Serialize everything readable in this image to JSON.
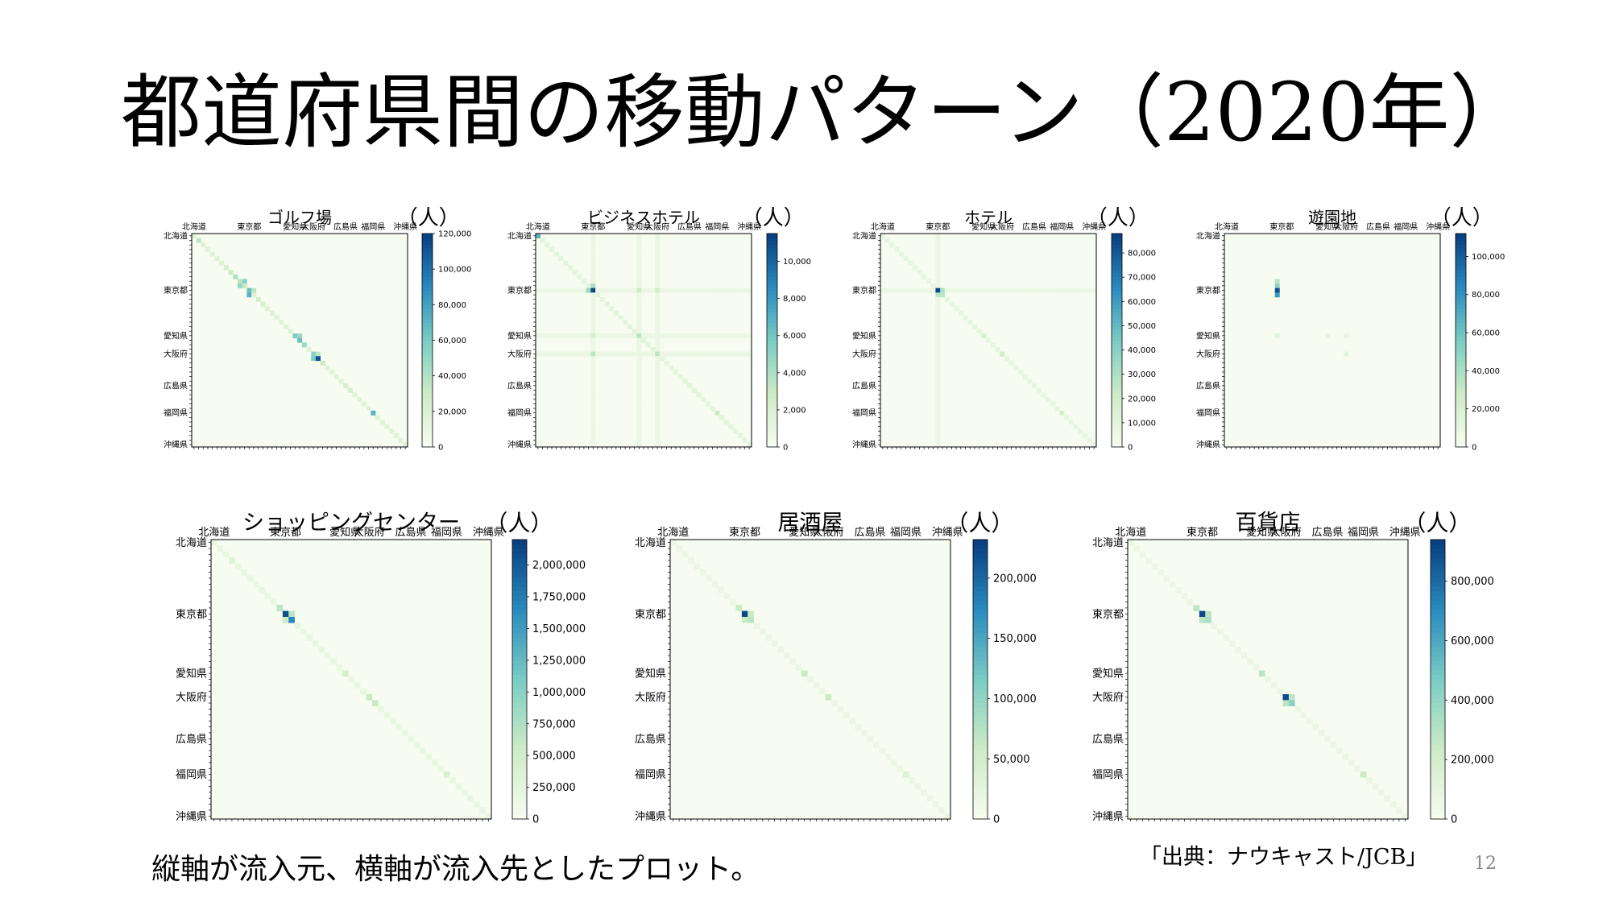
{
  "slide": {
    "title": "都道府県間の移動パターン（2020年）",
    "footer_note": "縦軸が流入元、横軸が流入先としたプロット。",
    "source": "「出典：ナウキャスト/JCB」",
    "page_number": "12"
  },
  "unit_label": "（人）",
  "prefecture_labels": [
    "北海道",
    "東京都",
    "愛知県",
    "大阪府",
    "広島県",
    "福岡県",
    "沖縄県"
  ],
  "colormap": [
    "#f7fcf0",
    "#ccebc5",
    "#7bccc4",
    "#2b8cbe",
    "#084081"
  ],
  "chart_data": [
    {
      "type": "heatmap",
      "title": "ゴルフ場",
      "colorbar_ticks": [
        "0",
        "20,000",
        "40,000",
        "60,000",
        "80,000",
        "100,000",
        "120,000"
      ],
      "colorbar_max": 120000,
      "hotspots": [
        [
          1,
          1,
          0.3
        ],
        [
          7,
          7,
          0.2
        ],
        [
          8,
          8,
          0.25
        ],
        [
          9,
          9,
          0.35
        ],
        [
          10,
          10,
          0.3
        ],
        [
          10,
          11,
          0.45
        ],
        [
          11,
          10,
          0.4
        ],
        [
          12,
          12,
          0.55
        ],
        [
          13,
          12,
          0.6
        ],
        [
          11,
          11,
          0.25
        ],
        [
          12,
          13,
          0.3
        ],
        [
          22,
          22,
          0.5
        ],
        [
          22,
          23,
          0.4
        ],
        [
          23,
          23,
          0.55
        ],
        [
          24,
          24,
          0.4
        ],
        [
          26,
          26,
          0.45
        ],
        [
          27,
          27,
          0.95
        ],
        [
          27,
          26,
          0.5
        ],
        [
          26,
          27,
          0.3
        ],
        [
          39,
          39,
          0.6
        ],
        [
          14,
          14,
          0.2
        ],
        [
          15,
          15,
          0.2
        ],
        [
          28,
          28,
          0.25
        ],
        [
          33,
          33,
          0.2
        ],
        [
          34,
          34,
          0.2
        ]
      ],
      "diagonal_level": 0.14
    },
    {
      "type": "heatmap",
      "title": "ビジネスホテル",
      "colorbar_ticks": [
        "0",
        "2,000",
        "4,000",
        "6,000",
        "8,000",
        "10,000"
      ],
      "colorbar_max": 11500,
      "hotspots": [
        [
          0,
          0,
          0.6
        ],
        [
          12,
          12,
          0.98
        ],
        [
          12,
          11,
          0.4
        ],
        [
          11,
          12,
          0.35
        ],
        [
          22,
          22,
          0.3
        ],
        [
          26,
          26,
          0.3
        ],
        [
          26,
          12,
          0.3
        ],
        [
          12,
          26,
          0.22
        ],
        [
          12,
          22,
          0.25
        ],
        [
          39,
          39,
          0.25
        ],
        [
          22,
          12,
          0.2
        ]
      ],
      "diagonal_level": 0.12,
      "row_streaks": [
        12,
        26,
        22
      ],
      "col_streaks": [
        12,
        26,
        22
      ]
    },
    {
      "type": "heatmap",
      "title": "ホテル",
      "colorbar_ticks": [
        "0",
        "10,000",
        "20,000",
        "30,000",
        "40,000",
        "50,000",
        "60,000",
        "70,000",
        "80,000"
      ],
      "colorbar_max": 88000,
      "hotspots": [
        [
          12,
          12,
          0.98
        ],
        [
          12,
          13,
          0.35
        ],
        [
          13,
          12,
          0.3
        ],
        [
          13,
          13,
          0.3
        ],
        [
          22,
          22,
          0.2
        ],
        [
          26,
          26,
          0.22
        ],
        [
          39,
          39,
          0.18
        ]
      ],
      "diagonal_level": 0.1,
      "row_streaks": [
        12
      ],
      "col_streaks": [
        12
      ]
    },
    {
      "type": "heatmap",
      "title": "遊園地",
      "colorbar_ticks": [
        "0",
        "20,000",
        "40,000",
        "60,000",
        "80,000",
        "100,000"
      ],
      "colorbar_max": 112000,
      "hotspots": [
        [
          11,
          11,
          0.45
        ],
        [
          12,
          11,
          0.95
        ],
        [
          13,
          11,
          0.7
        ],
        [
          10,
          11,
          0.3
        ],
        [
          22,
          11,
          0.15
        ],
        [
          22,
          22,
          0.12
        ],
        [
          26,
          26,
          0.12
        ],
        [
          22,
          26,
          0.1
        ]
      ],
      "diagonal_level": 0.0
    },
    {
      "type": "heatmap",
      "title": "ショッピングセンター",
      "colorbar_ticks": [
        "0",
        "250,000",
        "500,000",
        "750,000",
        "1,000,000",
        "1,250,000",
        "1,500,000",
        "1,750,000",
        "2,000,000"
      ],
      "colorbar_max": 2200000,
      "hotspots": [
        [
          12,
          12,
          0.95
        ],
        [
          13,
          13,
          0.75
        ],
        [
          11,
          11,
          0.3
        ],
        [
          12,
          13,
          0.3
        ],
        [
          13,
          12,
          0.25
        ],
        [
          22,
          22,
          0.2
        ],
        [
          26,
          26,
          0.25
        ],
        [
          27,
          27,
          0.25
        ],
        [
          39,
          39,
          0.18
        ],
        [
          3,
          3,
          0.15
        ]
      ],
      "diagonal_level": 0.08
    },
    {
      "type": "heatmap",
      "title": "居酒屋",
      "colorbar_ticks": [
        "0",
        "50,000",
        "100,000",
        "150,000",
        "200,000"
      ],
      "colorbar_max": 232000,
      "hotspots": [
        [
          12,
          12,
          0.97
        ],
        [
          13,
          13,
          0.3
        ],
        [
          11,
          11,
          0.25
        ],
        [
          12,
          13,
          0.25
        ],
        [
          13,
          12,
          0.25
        ],
        [
          22,
          22,
          0.25
        ],
        [
          26,
          26,
          0.25
        ],
        [
          39,
          39,
          0.15
        ]
      ],
      "diagonal_level": 0.07
    },
    {
      "type": "heatmap",
      "title": "百貨店",
      "colorbar_ticks": [
        "0",
        "200,000",
        "400,000",
        "600,000",
        "800,000"
      ],
      "colorbar_max": 940000,
      "hotspots": [
        [
          12,
          12,
          0.97
        ],
        [
          13,
          13,
          0.35
        ],
        [
          13,
          12,
          0.3
        ],
        [
          12,
          13,
          0.3
        ],
        [
          11,
          11,
          0.3
        ],
        [
          22,
          22,
          0.3
        ],
        [
          26,
          26,
          0.97
        ],
        [
          27,
          27,
          0.45
        ],
        [
          26,
          27,
          0.3
        ],
        [
          27,
          26,
          0.3
        ],
        [
          39,
          39,
          0.25
        ]
      ],
      "diagonal_level": 0.07
    }
  ]
}
